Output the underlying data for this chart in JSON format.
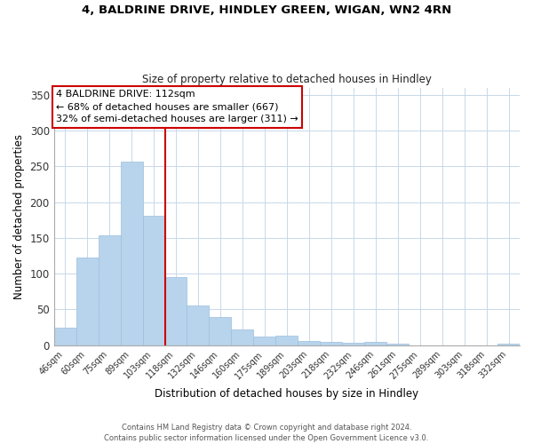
{
  "title1": "4, BALDRINE DRIVE, HINDLEY GREEN, WIGAN, WN2 4RN",
  "title2": "Size of property relative to detached houses in Hindley",
  "xlabel": "Distribution of detached houses by size in Hindley",
  "ylabel": "Number of detached properties",
  "bar_labels": [
    "46sqm",
    "60sqm",
    "75sqm",
    "89sqm",
    "103sqm",
    "118sqm",
    "132sqm",
    "146sqm",
    "160sqm",
    "175sqm",
    "189sqm",
    "203sqm",
    "218sqm",
    "232sqm",
    "246sqm",
    "261sqm",
    "275sqm",
    "289sqm",
    "303sqm",
    "318sqm",
    "332sqm"
  ],
  "bar_values": [
    25,
    122,
    153,
    257,
    181,
    95,
    56,
    40,
    22,
    12,
    14,
    6,
    5,
    4,
    5,
    2,
    0,
    0,
    0,
    0,
    2
  ],
  "bar_color": "#b8d4ec",
  "bar_edge_color": "#9bbfdf",
  "vline_color": "#cc0000",
  "annotation_text": "4 BALDRINE DRIVE: 112sqm\n← 68% of detached houses are smaller (667)\n32% of semi-detached houses are larger (311) →",
  "annotation_box_color": "#ffffff",
  "annotation_box_edge": "#cc0000",
  "ylim": [
    0,
    360
  ],
  "footer": "Contains HM Land Registry data © Crown copyright and database right 2024.\nContains public sector information licensed under the Open Government Licence v3.0.",
  "background_color": "#ffffff",
  "grid_color": "#c8d8e8"
}
